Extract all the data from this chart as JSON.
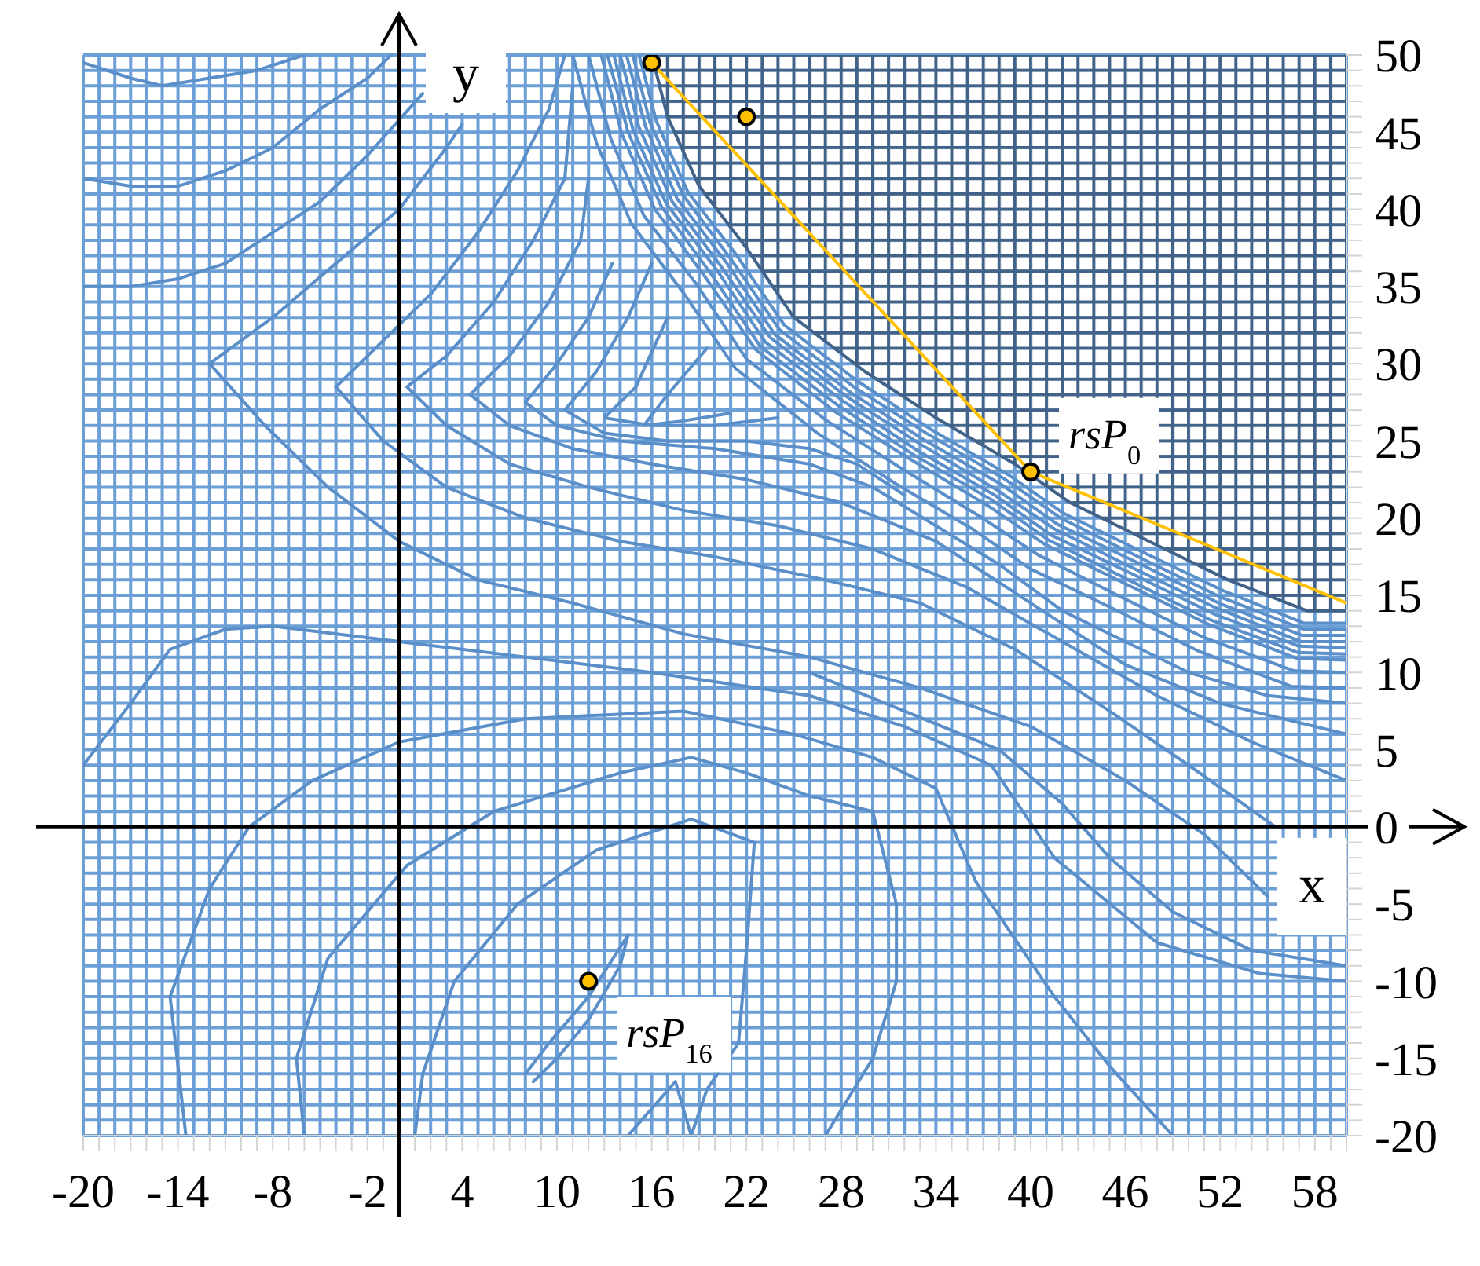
{
  "chart_data": {
    "type": "line",
    "xlabel": "x",
    "ylabel": "y",
    "xlim": [
      -20,
      60
    ],
    "ylim": [
      -20,
      50
    ],
    "xticks": [
      -20,
      {
        "value": -19,
        "label": null
      },
      {
        "value": -18,
        "label": null
      },
      {
        "value": -17,
        "label": null
      },
      {
        "value": -16,
        "label": null
      },
      {
        "value": -15,
        "label": null
      },
      -14,
      {
        "value": -13,
        "label": null
      },
      {
        "value": -12,
        "label": null
      },
      {
        "value": -11,
        "label": null
      },
      {
        "value": -10,
        "label": null
      },
      {
        "value": -9,
        "label": null
      },
      -8,
      {
        "value": -7,
        "label": null
      },
      {
        "value": -6,
        "label": null
      },
      {
        "value": -5,
        "label": null
      },
      {
        "value": -4,
        "label": null
      },
      {
        "value": -3,
        "label": null
      },
      -2,
      {
        "value": -1,
        "label": null
      },
      {
        "value": 0,
        "label": null
      },
      {
        "value": 1,
        "label": null
      },
      {
        "value": 2,
        "label": null
      },
      {
        "value": 3,
        "label": null
      },
      4,
      {
        "value": 5,
        "label": null
      },
      {
        "value": 6,
        "label": null
      },
      {
        "value": 7,
        "label": null
      },
      {
        "value": 8,
        "label": null
      },
      {
        "value": 9,
        "label": null
      },
      10,
      {
        "value": 11,
        "label": null
      },
      {
        "value": 12,
        "label": null
      },
      {
        "value": 13,
        "label": null
      },
      {
        "value": 14,
        "label": null
      },
      {
        "value": 15,
        "label": null
      },
      16,
      {
        "value": 17,
        "label": null
      },
      {
        "value": 18,
        "label": null
      },
      {
        "value": 19,
        "label": null
      },
      {
        "value": 20,
        "label": null
      },
      {
        "value": 21,
        "label": null
      },
      22,
      {
        "value": 23,
        "label": null
      },
      {
        "value": 24,
        "label": null
      },
      {
        "value": 25,
        "label": null
      },
      {
        "value": 26,
        "label": null
      },
      {
        "value": 27,
        "label": null
      },
      28,
      {
        "value": 29,
        "label": null
      },
      {
        "value": 30,
        "label": null
      },
      {
        "value": 31,
        "label": null
      },
      {
        "value": 32,
        "label": null
      },
      {
        "value": 33,
        "label": null
      },
      34,
      {
        "value": 35,
        "label": null
      },
      {
        "value": 36,
        "label": null
      },
      {
        "value": 37,
        "label": null
      },
      {
        "value": 38,
        "label": null
      },
      {
        "value": 39,
        "label": null
      },
      40,
      {
        "value": 41,
        "label": null
      },
      {
        "value": 42,
        "label": null
      },
      {
        "value": 43,
        "label": null
      },
      {
        "value": 44,
        "label": null
      },
      {
        "value": 45,
        "label": null
      },
      46,
      {
        "value": 47,
        "label": null
      },
      {
        "value": 48,
        "label": null
      },
      {
        "value": 49,
        "label": null
      },
      {
        "value": 50,
        "label": null
      },
      {
        "value": 51,
        "label": null
      },
      52,
      {
        "value": 53,
        "label": null
      },
      {
        "value": 54,
        "label": null
      },
      {
        "value": 55,
        "label": null
      },
      {
        "value": 56,
        "label": null
      },
      {
        "value": 57,
        "label": null
      },
      58,
      {
        "value": 59,
        "label": null
      },
      {
        "value": 60,
        "label": null
      }
    ],
    "yticks": [
      -20,
      {
        "value": -19,
        "label": null
      },
      {
        "value": -18,
        "label": null
      },
      {
        "value": -17,
        "label": null
      },
      {
        "value": -16,
        "label": null
      },
      -15,
      {
        "value": -14,
        "label": null
      },
      {
        "value": -13,
        "label": null
      },
      {
        "value": -12,
        "label": null
      },
      {
        "value": -11,
        "label": null
      },
      -10,
      {
        "value": -9,
        "label": null
      },
      {
        "value": -8,
        "label": null
      },
      {
        "value": -7,
        "label": null
      },
      {
        "value": -6,
        "label": null
      },
      -5,
      {
        "value": -4,
        "label": null
      },
      {
        "value": -3,
        "label": null
      },
      {
        "value": -2,
        "label": null
      },
      {
        "value": -1,
        "label": null
      },
      0,
      {
        "value": 1,
        "label": null
      },
      {
        "value": 2,
        "label": null
      },
      {
        "value": 3,
        "label": null
      },
      {
        "value": 4,
        "label": null
      },
      5,
      {
        "value": 6,
        "label": null
      },
      {
        "value": 7,
        "label": null
      },
      {
        "value": 8,
        "label": null
      },
      {
        "value": 9,
        "label": null
      },
      10,
      {
        "value": 11,
        "label": null
      },
      {
        "value": 12,
        "label": null
      },
      {
        "value": 13,
        "label": null
      },
      {
        "value": 14,
        "label": null
      },
      15,
      {
        "value": 16,
        "label": null
      },
      {
        "value": 17,
        "label": null
      },
      {
        "value": 18,
        "label": null
      },
      {
        "value": 19,
        "label": null
      },
      20,
      {
        "value": 21,
        "label": null
      },
      {
        "value": 22,
        "label": null
      },
      {
        "value": 23,
        "label": null
      },
      {
        "value": 24,
        "label": null
      },
      25,
      {
        "value": 26,
        "label": null
      },
      {
        "value": 27,
        "label": null
      },
      {
        "value": 28,
        "label": null
      },
      {
        "value": 29,
        "label": null
      },
      30,
      {
        "value": 31,
        "label": null
      },
      {
        "value": 32,
        "label": null
      },
      {
        "value": 33,
        "label": null
      },
      {
        "value": 34,
        "label": null
      },
      35,
      {
        "value": 36,
        "label": null
      },
      {
        "value": 37,
        "label": null
      },
      {
        "value": 38,
        "label": null
      },
      {
        "value": 39,
        "label": null
      },
      40,
      {
        "value": 41,
        "label": null
      },
      {
        "value": 42,
        "label": null
      },
      {
        "value": 43,
        "label": null
      },
      {
        "value": 44,
        "label": null
      },
      45,
      {
        "value": 46,
        "label": null
      },
      {
        "value": 47,
        "label": null
      },
      {
        "value": 48,
        "label": null
      },
      {
        "value": 49,
        "label": null
      },
      50
    ],
    "grid": true,
    "series": [
      {
        "color": "#5b8fca",
        "x": [
          -20,
          -17,
          -15,
          -12,
          -9,
          -6
        ],
        "values": [
          49.5,
          48.5,
          48,
          48.5,
          49,
          50
        ]
      },
      {
        "color": "#5b8fca",
        "x": [
          -20,
          -17,
          -14,
          -11,
          -8,
          -5,
          -2,
          -0.5
        ],
        "values": [
          42,
          41.5,
          41.5,
          42.5,
          44,
          46.5,
          48.5,
          50
        ]
      },
      {
        "color": "#5b8fca",
        "x": [
          -20,
          -17,
          -14,
          -11,
          -8,
          -5,
          -2,
          1.5
        ],
        "values": [
          35,
          35,
          35.5,
          36.5,
          38.5,
          40.5,
          43.5,
          47.5
        ]
      },
      {
        "color": "#5b8fca",
        "x": [
          4,
          3,
          0,
          -4,
          -8,
          -12,
          -8.5,
          -4.5,
          0,
          5,
          11,
          18,
          26,
          33,
          40,
          46,
          51,
          55
        ],
        "values": [
          45.5,
          44,
          40,
          36.5,
          33,
          30,
          26,
          22,
          18.5,
          16,
          14.5,
          12.5,
          11,
          9,
          6.5,
          3,
          -0.5,
          -4.5
        ]
      },
      {
        "color": "#5b8fca",
        "x": [
          10.5,
          9.5,
          7.5,
          5,
          2,
          -1,
          -4,
          -1,
          3,
          8,
          14,
          20,
          27,
          33,
          39,
          45,
          50,
          55.5
        ],
        "values": [
          50,
          46.5,
          42.5,
          38.5,
          34.5,
          31.5,
          28.5,
          25,
          22,
          20,
          18.5,
          17.5,
          16,
          14.5,
          11.5,
          7.5,
          4,
          0
        ]
      },
      {
        "color": "#5b8fca",
        "x": [
          11,
          10.5,
          8.5,
          6,
          3,
          0.5,
          3,
          7,
          12,
          18,
          24,
          30,
          36,
          42,
          48,
          54,
          60
        ],
        "values": [
          48,
          42,
          38,
          34,
          30.5,
          28.5,
          26,
          23.5,
          22,
          20.5,
          19.5,
          18,
          15.5,
          12,
          8.5,
          5.5,
          3
        ]
      },
      {
        "color": "#5b8fca",
        "x": [
          12,
          11.5,
          9.5,
          7,
          4.5,
          7,
          11,
          16,
          22,
          28,
          34,
          40,
          46,
          52,
          60
        ],
        "values": [
          42,
          38,
          34,
          30.5,
          28,
          26,
          24.5,
          23.5,
          22.5,
          21,
          18.5,
          14.5,
          10.5,
          8,
          6
        ]
      },
      {
        "color": "#5b8fca",
        "x": [
          13.5,
          12,
          10,
          8,
          10,
          14,
          20,
          26,
          30,
          34,
          38,
          42,
          46,
          50,
          55,
          60
        ],
        "values": [
          36.5,
          33,
          30,
          27.5,
          26,
          25,
          24.5,
          23.5,
          22,
          19.5,
          17,
          14,
          12,
          10,
          8.5,
          8
        ]
      },
      {
        "color": "#5b8fca",
        "x": [
          16,
          14.5,
          12.5,
          10.5,
          13,
          17,
          22,
          26,
          29,
          32
        ],
        "values": [
          36.5,
          33,
          29.5,
          27,
          25.5,
          25,
          25,
          24.5,
          23.5,
          21.5
        ]
      },
      {
        "color": "#5b8fca",
        "x": [
          17,
          15,
          13,
          16,
          20,
          24
        ],
        "values": [
          33,
          28.5,
          26.5,
          26,
          26,
          26.5
        ]
      },
      {
        "color": "#5b8fca",
        "x": [
          19.5,
          17,
          15.5,
          18,
          21
        ],
        "values": [
          31,
          28,
          26,
          26.3,
          26.8
        ]
      },
      {
        "color": "#5b8fca",
        "x": [
          15.2,
          16.3,
          18.3,
          21.4,
          24.4,
          29,
          33.6,
          38.6,
          42.1,
          47.1,
          52.2,
          57.3,
          60
        ],
        "values": [
          50,
          45.7,
          41.1,
          37,
          32.5,
          28.9,
          25.8,
          22.8,
          20.3,
          17.8,
          15.3,
          13.2,
          13.2
        ]
      },
      {
        "color": "#5b8fca",
        "x": [
          14.8,
          15.9,
          18,
          21,
          24.1,
          28.8,
          33.4,
          38.4,
          41.9,
          47,
          52,
          57.3,
          60
        ],
        "values": [
          50,
          45.6,
          40.9,
          36.8,
          32.2,
          28.5,
          25.5,
          22.5,
          20,
          17.4,
          14.9,
          12.8,
          12.8
        ]
      },
      {
        "color": "#5b8fca",
        "x": [
          14.4,
          15.6,
          17.6,
          20.7,
          23.8,
          28.5,
          33.2,
          38.1,
          41.7,
          46.8,
          51.9,
          57.2,
          60
        ],
        "values": [
          50,
          45.4,
          40.7,
          36.6,
          31.9,
          28.2,
          25.1,
          22.2,
          19.6,
          17.1,
          14.5,
          12.4,
          12.4
        ]
      },
      {
        "color": "#5b8fca",
        "x": [
          14,
          15.2,
          17.3,
          20.4,
          23.5,
          28.3,
          33,
          37.9,
          41.5,
          46.6,
          51.7,
          57.1,
          60
        ],
        "values": [
          50,
          45.3,
          40.5,
          36.3,
          31.7,
          27.9,
          24.8,
          21.8,
          19.3,
          16.7,
          14.2,
          12,
          12
        ]
      },
      {
        "color": "#5b8fca",
        "x": [
          13.6,
          14.8,
          16.9,
          20.1,
          23.2,
          28.1,
          32.8,
          37.7,
          41.3,
          46.4,
          51.6,
          57,
          60
        ],
        "values": [
          50,
          45.2,
          40.4,
          36.1,
          31.4,
          27.6,
          24.4,
          21.5,
          18.9,
          16.4,
          13.8,
          11.7,
          11.6
        ]
      },
      {
        "color": "#5b8fca",
        "x": [
          13.2,
          14.5,
          16.6,
          19.7,
          22.9,
          27.8,
          32.6,
          37.5,
          41.1,
          46.2,
          51.4,
          56.9,
          60
        ],
        "values": [
          50,
          45,
          40.2,
          35.9,
          31.1,
          27.3,
          24.1,
          21.2,
          18.6,
          16,
          13.4,
          11.3,
          11.2
        ]
      },
      {
        "color": "#5b8fca",
        "x": [
          12.8,
          14.1,
          16.2,
          19.4,
          22.6,
          27.6,
          32.4,
          37.3,
          40.9,
          46.1,
          51.3,
          56.9,
          60
        ],
        "values": [
          50,
          44.9,
          40,
          35.6,
          30.9,
          26.9,
          23.8,
          20.8,
          18.3,
          15.7,
          13.1,
          10.9,
          10.8
        ]
      },
      {
        "color": "#5b8fca",
        "x": [
          12,
          13.4,
          15.5,
          18.8,
          22,
          27.1,
          32,
          36.8,
          40.5,
          45.7,
          50.9,
          56.7,
          60
        ],
        "values": [
          50,
          44.6,
          39.6,
          35.2,
          30.3,
          26.3,
          23.1,
          20.1,
          17.6,
          14.9,
          12.3,
          10.1,
          10
        ]
      },
      {
        "color": "#5b8fca",
        "x": [
          11,
          12.5,
          14.7,
          18,
          21.3,
          26.5,
          31.5,
          36.3,
          40,
          45.3,
          50.6,
          56.5,
          60
        ],
        "values": [
          50,
          44.3,
          39.1,
          34.6,
          29.7,
          25.5,
          22.2,
          19.3,
          16.7,
          14.1,
          11.4,
          9.1,
          9
        ]
      },
      {
        "color": "#5b8fca",
        "x": [
          -20,
          -17,
          -14.5,
          -11,
          -8,
          0,
          8,
          16,
          26,
          32,
          37.5,
          41.5,
          48,
          54.5,
          60
        ],
        "values": [
          4,
          8,
          11.5,
          12.8,
          13,
          12,
          11,
          10,
          8.5,
          6.5,
          4,
          -2,
          -7.5,
          -9.5,
          -10
        ]
      },
      {
        "color": "#5b8fca",
        "x": [
          26,
          32,
          38,
          42,
          45,
          49,
          54,
          60
        ],
        "values": [
          10,
          7.5,
          5,
          1.5,
          -2,
          -5.5,
          -8,
          -9
        ]
      },
      {
        "color": "#5b8fca",
        "x": [
          -13.5,
          -14.5,
          -12,
          -9.5,
          -5.5,
          0,
          8,
          18,
          25,
          30,
          34,
          36.5,
          41.5,
          45,
          49
        ],
        "values": [
          -20,
          -11,
          -4,
          0,
          3,
          5.5,
          7,
          7.5,
          6,
          4.5,
          2.5,
          -3.5,
          -11,
          -15.5,
          -20
        ]
      },
      {
        "color": "#5b8fca",
        "x": [
          -6,
          -6.5,
          -4.5,
          0.5,
          6,
          14,
          18.5,
          22,
          26,
          30,
          31.5,
          31.5,
          30,
          27
        ],
        "values": [
          -20,
          -15,
          -8.5,
          -2.5,
          1,
          3.5,
          4.5,
          3.5,
          2,
          1,
          -5,
          -10,
          -15,
          -20
        ]
      },
      {
        "color": "#5b8fca",
        "x": [
          1,
          1.5,
          3.5,
          7.5,
          12.5,
          18.5,
          22.5,
          22,
          21.5,
          19.5,
          18.5,
          17.5,
          14.5
        ],
        "values": [
          -20,
          -16,
          -10,
          -5,
          -1.5,
          0.5,
          -1,
          -8,
          -14,
          -17,
          -20,
          -16.5,
          -20
        ]
      },
      {
        "color": "#5b8fca",
        "x": [
          8,
          9.5,
          12,
          14.5,
          14,
          12,
          10,
          8.5
        ],
        "values": [
          -16,
          -14,
          -11,
          -7,
          -9,
          -12.5,
          -15,
          -16.5
        ]
      },
      {
        "color": "#41638a",
        "x": [
          16,
          17,
          19,
          22,
          25,
          29.5,
          34,
          39,
          42.5,
          47.5,
          52.5,
          57.5,
          60
        ],
        "values": [
          50,
          46,
          41.5,
          37.5,
          33,
          29.5,
          26.5,
          23.5,
          21,
          18.5,
          16,
          14,
          14
        ],
        "lower": [
          50,
          46,
          41.5,
          37.5,
          33,
          29.5,
          26.5,
          23.5,
          21,
          18.5,
          16,
          14,
          14
        ],
        "upper": [
          50,
          50,
          50,
          50,
          50,
          50,
          50,
          50,
          50,
          50,
          50,
          50,
          50
        ]
      },
      {
        "color": "#ffc000",
        "x": [
          16,
          40,
          60
        ],
        "values": [
          49.5,
          23,
          14.5
        ]
      },
      {
        "type": "scatter",
        "color": "#ffc000",
        "marker": "circle",
        "x": [
          16,
          22,
          40,
          12
        ],
        "values": [
          49.5,
          46,
          23,
          -10
        ]
      }
    ],
    "annotations": [
      {
        "text": "rsP$_{0}$",
        "x": 40,
        "y": 23
      },
      {
        "text": "rsP$_{16}$",
        "x": 12,
        "y": -10
      }
    ]
  }
}
